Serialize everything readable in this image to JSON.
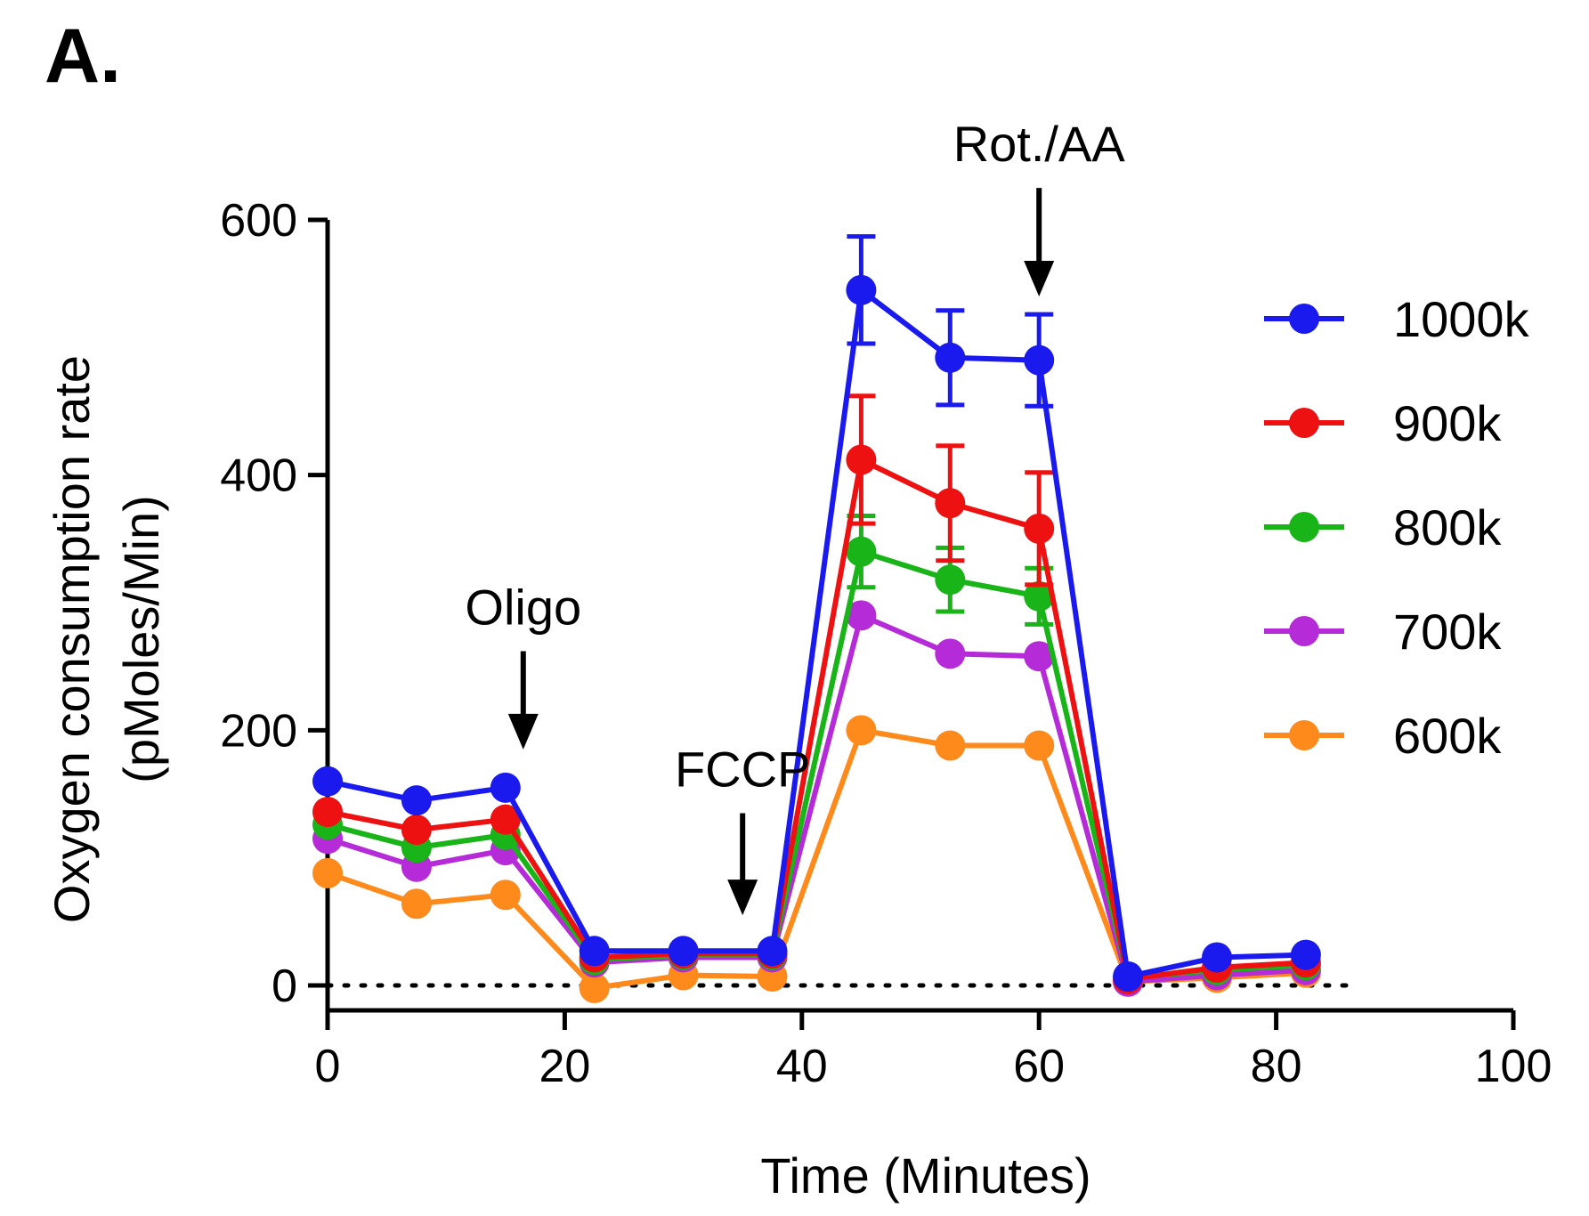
{
  "panel_label": "A.",
  "chart_data": {
    "type": "line",
    "xlabel": "Time (Minutes)",
    "ylabel_line1": "Oxygen consumption rate",
    "ylabel_line2": "(pMoles/Min)",
    "xlim": [
      0,
      100
    ],
    "ylim": [
      -20,
      600
    ],
    "xticks": [
      0,
      20,
      40,
      60,
      80,
      100
    ],
    "yticks": [
      0,
      200,
      400,
      600
    ],
    "x": [
      0,
      7.5,
      15,
      22.5,
      30,
      37.5,
      45,
      52.5,
      60,
      67.5,
      75,
      82.5
    ],
    "reference_line": {
      "y": 0,
      "style": "dotted"
    },
    "series": [
      {
        "name": "600k",
        "color": "#ff8a1c",
        "values": [
          88,
          64,
          71,
          -2,
          8,
          7,
          200,
          188,
          188,
          3,
          6,
          10
        ],
        "errors": [
          0,
          0,
          0,
          0,
          0,
          0,
          0,
          0,
          0,
          0,
          0,
          0
        ]
      },
      {
        "name": "700k",
        "color": "#b52bd8",
        "values": [
          115,
          93,
          106,
          18,
          22,
          22,
          290,
          260,
          258,
          3,
          8,
          12
        ],
        "errors": [
          0,
          0,
          0,
          0,
          0,
          0,
          0,
          0,
          0,
          0,
          0,
          0
        ]
      },
      {
        "name": "800k",
        "color": "#18b418",
        "values": [
          126,
          108,
          118,
          20,
          24,
          24,
          340,
          318,
          305,
          6,
          12,
          16
        ],
        "errors": [
          0,
          0,
          0,
          0,
          0,
          0,
          28,
          25,
          22,
          0,
          0,
          0
        ]
      },
      {
        "name": "900k",
        "color": "#ee1111",
        "values": [
          136,
          122,
          130,
          22,
          25,
          25,
          412,
          378,
          358,
          5,
          14,
          18
        ],
        "errors": [
          0,
          0,
          0,
          0,
          0,
          0,
          50,
          45,
          44,
          0,
          0,
          0
        ]
      },
      {
        "name": "1000k",
        "color": "#1a1aee",
        "values": [
          160,
          145,
          155,
          27,
          27,
          27,
          545,
          492,
          490,
          7,
          22,
          24
        ],
        "errors": [
          0,
          0,
          0,
          0,
          0,
          0,
          42,
          37,
          36,
          0,
          0,
          0
        ]
      }
    ],
    "legend_order": [
      "1000k",
      "900k",
      "800k",
      "700k",
      "600k"
    ],
    "legend_position": "right",
    "annotations": [
      {
        "label": "Oligo",
        "x": 16.5,
        "arrow_from_y": 262,
        "arrow_to_y": 185
      },
      {
        "label": "FCCP",
        "x": 35,
        "arrow_from_y": 135,
        "arrow_to_y": 55
      },
      {
        "label": "Rot./AA",
        "x": 60,
        "arrow_from_y": 625,
        "arrow_to_y": 540
      }
    ]
  }
}
